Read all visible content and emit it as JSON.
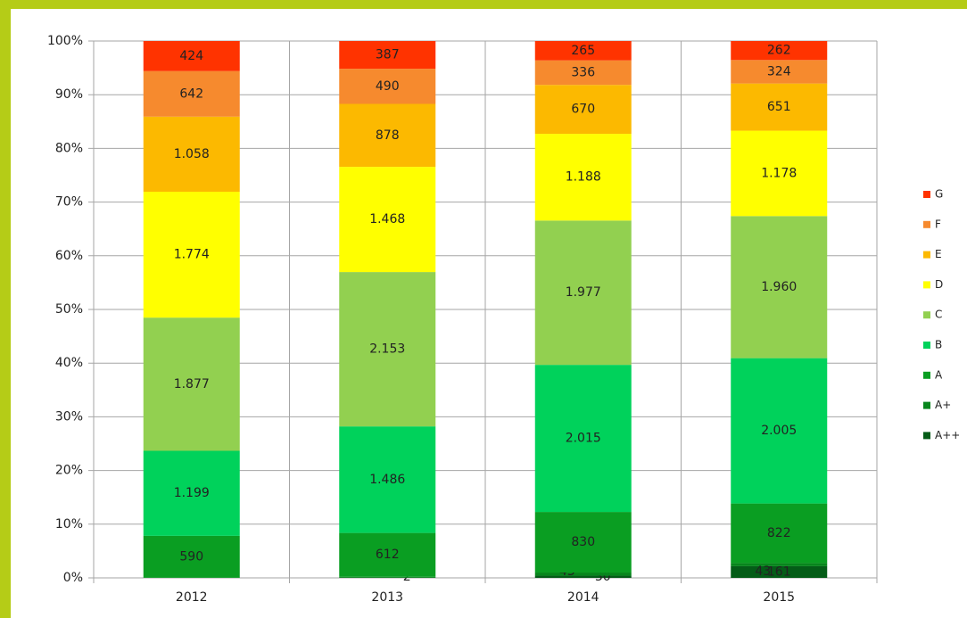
{
  "chart_data": {
    "type": "bar",
    "stacked": "percent",
    "categories": [
      "2012",
      "2013",
      "2014",
      "2015"
    ],
    "series": [
      {
        "name": "A++",
        "color": "#045c17",
        "values": [
          0,
          2,
          30,
          161
        ],
        "value_labels": [
          "-",
          "2",
          "30",
          "161"
        ]
      },
      {
        "name": "A+",
        "color": "#07861c",
        "values": [
          2,
          13,
          43,
          43
        ]
      },
      {
        "name": "A",
        "color": "#0a9e22",
        "values": [
          590,
          612,
          830,
          822
        ]
      },
      {
        "name": "B",
        "color": "#00d25b",
        "values": [
          1199,
          1486,
          2015,
          2005
        ],
        "value_labels": [
          "1.199",
          "1.486",
          "2.015",
          "2.005"
        ]
      },
      {
        "name": "C",
        "color": "#92d050",
        "values": [
          1877,
          2153,
          1977,
          1960
        ],
        "value_labels": [
          "1.877",
          "2.153",
          "1.977",
          "1.960"
        ]
      },
      {
        "name": "D",
        "color": "#ffff00",
        "values": [
          1774,
          1468,
          1188,
          1178
        ],
        "value_labels": [
          "1.774",
          "1.468",
          "1.188",
          "1.178"
        ]
      },
      {
        "name": "E",
        "color": "#fcb900",
        "values": [
          1058,
          878,
          670,
          651
        ],
        "value_labels": [
          "1.058",
          "878",
          "670",
          "651"
        ]
      },
      {
        "name": "F",
        "color": "#f68a2e",
        "values": [
          642,
          490,
          336,
          324
        ]
      },
      {
        "name": "G",
        "color": "#ff3300",
        "values": [
          424,
          387,
          265,
          262
        ]
      }
    ],
    "ylim": [
      0,
      100
    ],
    "yticks": [
      {
        "value": 0,
        "label": "0%"
      },
      {
        "value": 10,
        "label": "10%"
      },
      {
        "value": 20,
        "label": "20%"
      },
      {
        "value": 30,
        "label": "30%"
      },
      {
        "value": 40,
        "label": "40%"
      },
      {
        "value": 50,
        "label": "50%"
      },
      {
        "value": 60,
        "label": "60%"
      },
      {
        "value": 70,
        "label": "70%"
      },
      {
        "value": 80,
        "label": "80%"
      },
      {
        "value": 90,
        "label": "90%"
      },
      {
        "value": 100,
        "label": "100%"
      }
    ],
    "grid": true,
    "legend": "right"
  }
}
